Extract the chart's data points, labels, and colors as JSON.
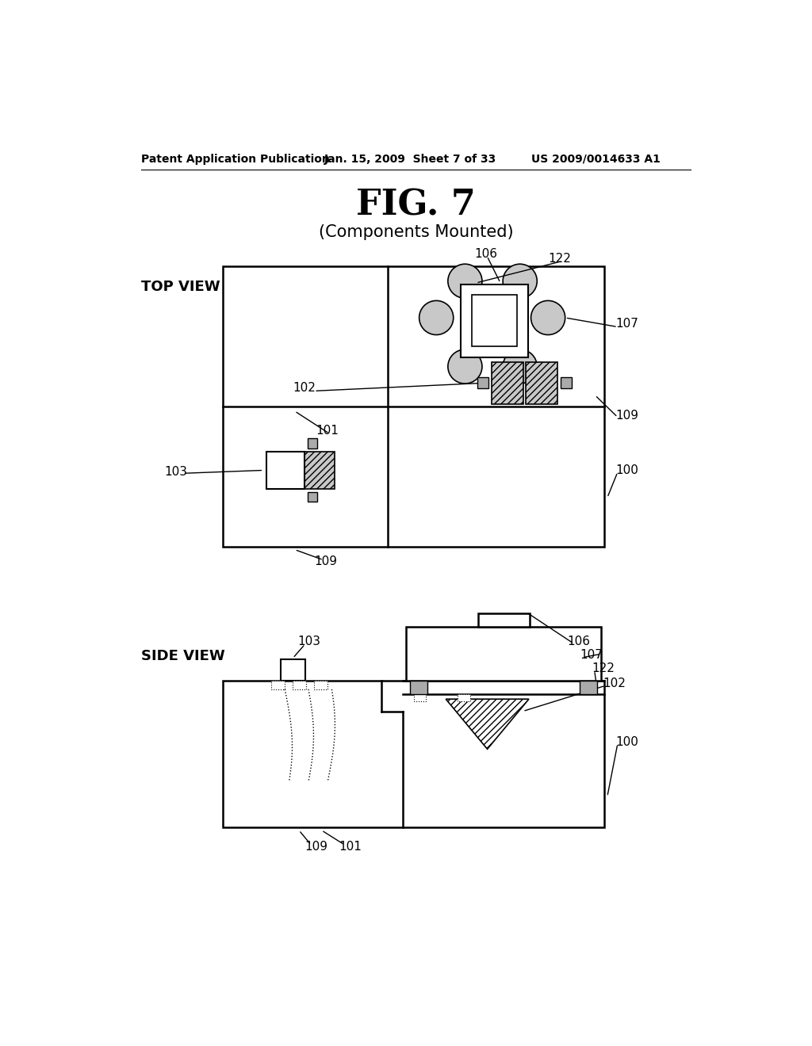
{
  "bg_color": "#ffffff",
  "header_left": "Patent Application Publication",
  "header_center": "Jan. 15, 2009  Sheet 7 of 33",
  "header_right": "US 2009/0014633 A1",
  "fig_title": "FIG. 7",
  "fig_subtitle": "(Components Mounted)",
  "top_view_label": "TOP VIEW",
  "side_view_label": "SIDE VIEW",
  "gray_light": "#c8c8c8",
  "gray_mid": "#aaaaaa",
  "gray_dark": "#888888"
}
